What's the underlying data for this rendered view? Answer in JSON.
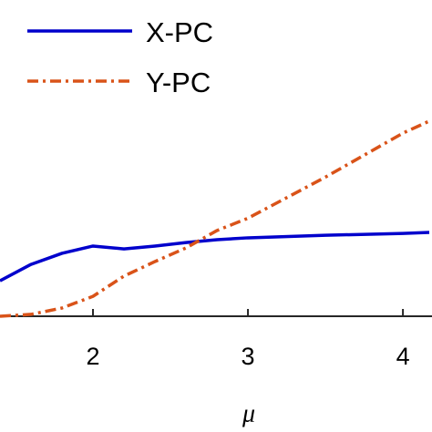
{
  "chart_data": {
    "type": "line",
    "x_label": "μ",
    "x": [
      1.4,
      1.6,
      1.8,
      2.0,
      2.2,
      2.4,
      2.6,
      2.8,
      3.0,
      3.5,
      4.0,
      4.17
    ],
    "series": [
      {
        "name": "X-PC",
        "color": "#0000cc",
        "dash": "solid",
        "values": [
          0.112,
          0.164,
          0.199,
          0.222,
          0.213,
          0.222,
          0.233,
          0.242,
          0.248,
          0.256,
          0.262,
          0.265
        ]
      },
      {
        "name": "Y-PC",
        "color": "#d95319",
        "dash": "dashdot",
        "values": [
          0,
          0.006,
          0.026,
          0.063,
          0.127,
          0.173,
          0.216,
          0.271,
          0.31,
          0.44,
          0.579,
          0.617
        ]
      }
    ],
    "xlim": [
      1.4,
      4.17
    ],
    "xticks": [
      2,
      3,
      4
    ],
    "ylim": [
      0,
      1
    ],
    "legend": "upper left"
  }
}
